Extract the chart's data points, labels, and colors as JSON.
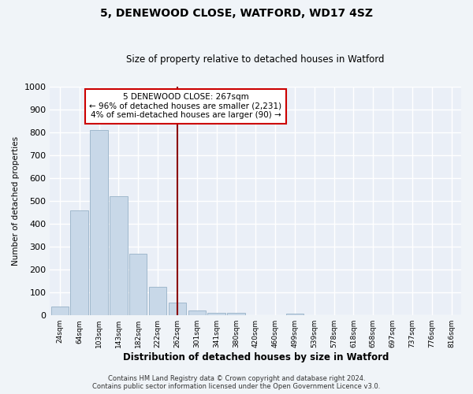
{
  "title": "5, DENEWOOD CLOSE, WATFORD, WD17 4SZ",
  "subtitle": "Size of property relative to detached houses in Watford",
  "xlabel": "Distribution of detached houses by size in Watford",
  "ylabel": "Number of detached properties",
  "bar_labels": [
    "24sqm",
    "64sqm",
    "103sqm",
    "143sqm",
    "182sqm",
    "222sqm",
    "262sqm",
    "301sqm",
    "341sqm",
    "380sqm",
    "420sqm",
    "460sqm",
    "499sqm",
    "539sqm",
    "578sqm",
    "618sqm",
    "658sqm",
    "697sqm",
    "737sqm",
    "776sqm",
    "816sqm"
  ],
  "bar_values": [
    40,
    460,
    810,
    520,
    270,
    125,
    55,
    22,
    10,
    12,
    0,
    0,
    9,
    0,
    0,
    0,
    0,
    0,
    0,
    0,
    0
  ],
  "bar_color": "#c8d8e8",
  "bar_edge_color": "#a0b8cc",
  "vline_x": 6,
  "vline_color": "#8b0000",
  "annotation_line1": "5 DENEWOOD CLOSE: 267sqm",
  "annotation_line2": "← 96% of detached houses are smaller (2,231)",
  "annotation_line3": "4% of semi-detached houses are larger (90) →",
  "annotation_box_color": "#ffffff",
  "annotation_box_edge": "#cc0000",
  "ylim": [
    0,
    1000
  ],
  "fig_bg_color": "#f0f4f8",
  "ax_bg_color": "#eaeff7",
  "grid_color": "#ffffff",
  "footnote1": "Contains HM Land Registry data © Crown copyright and database right 2024.",
  "footnote2": "Contains public sector information licensed under the Open Government Licence v3.0."
}
